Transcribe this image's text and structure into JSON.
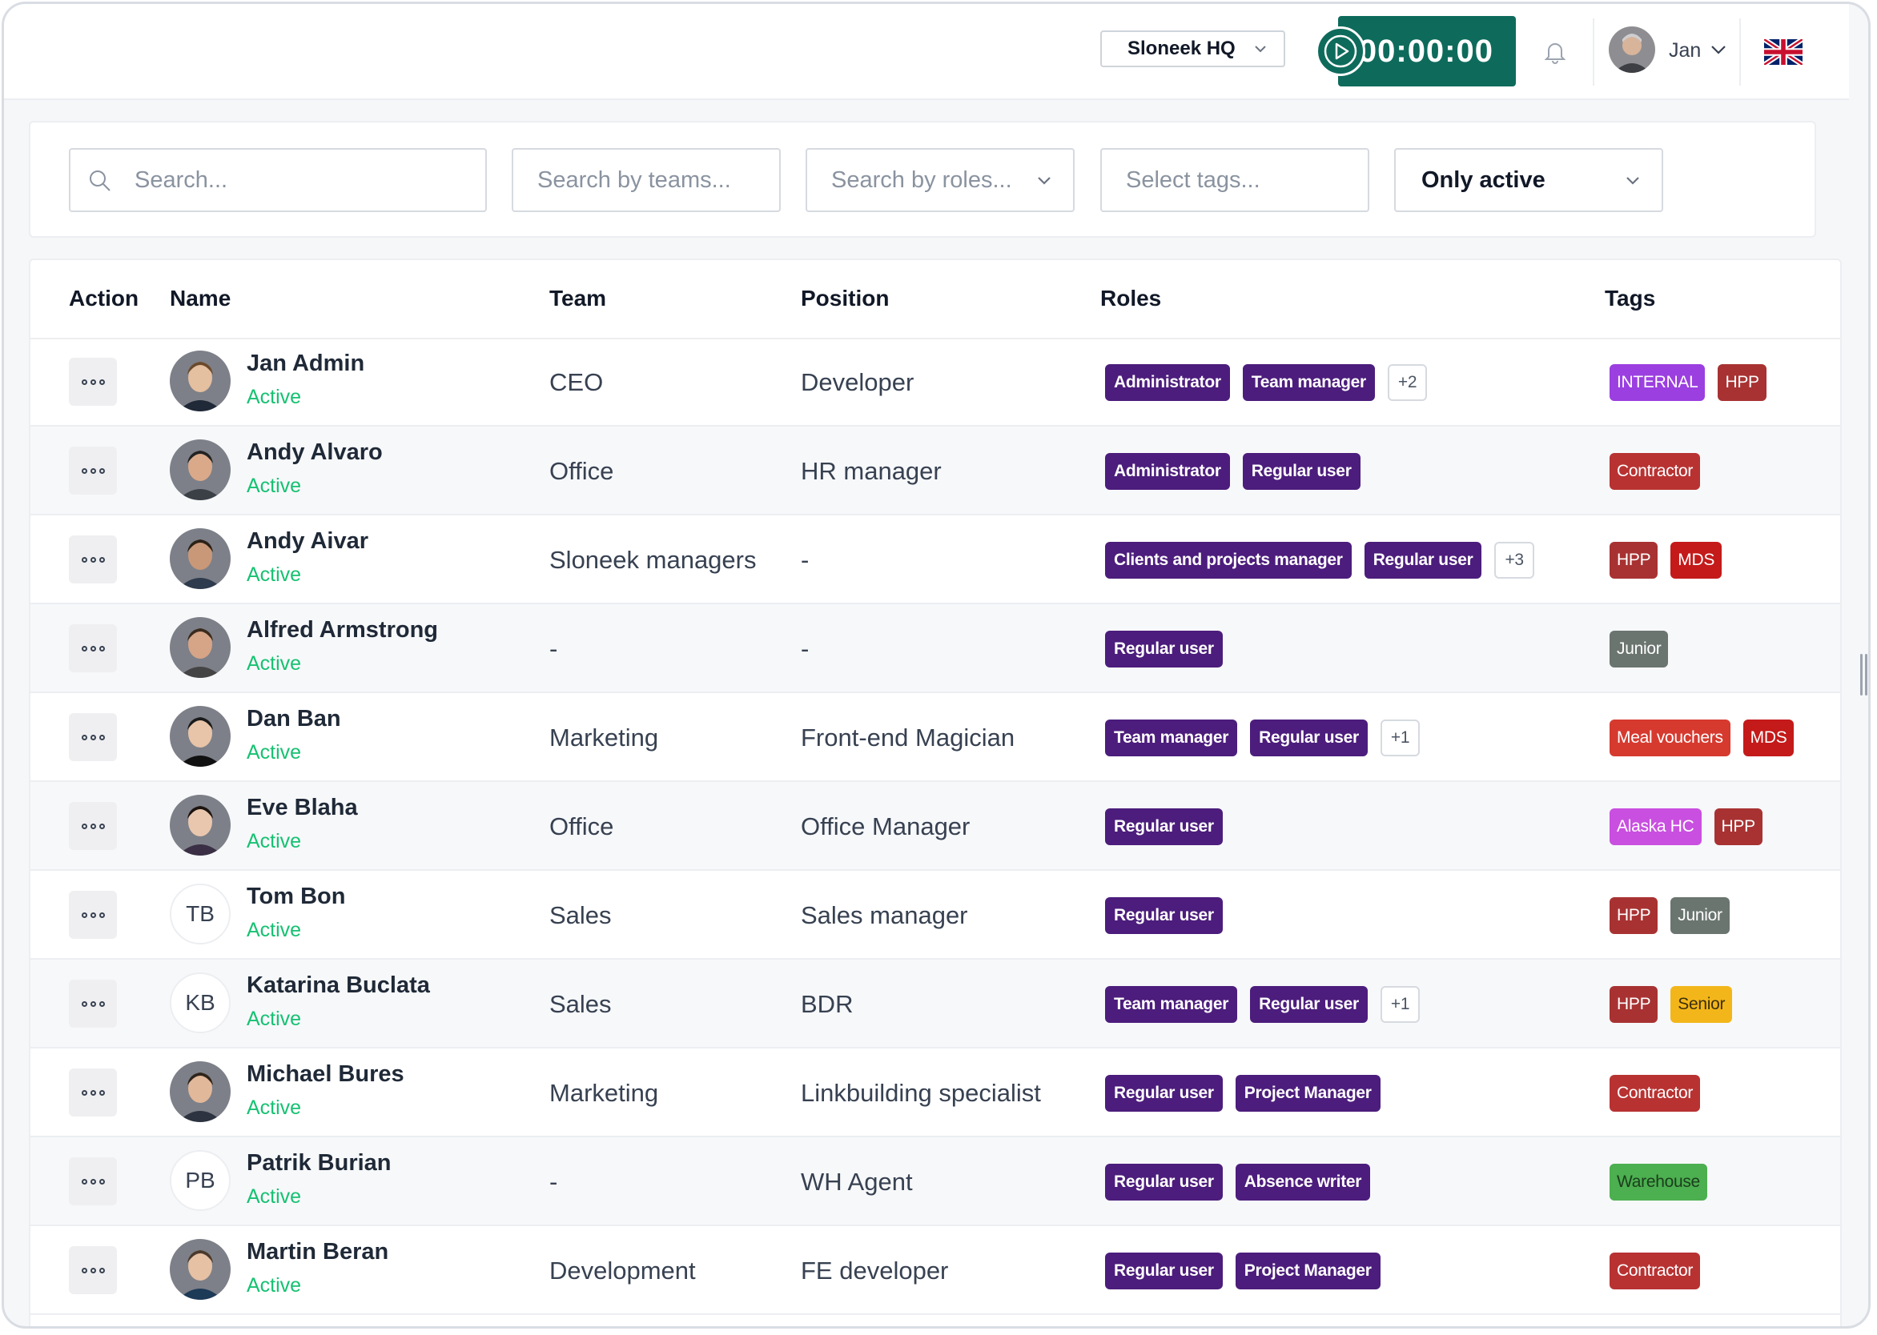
{
  "header": {
    "workspace": "Sloneek HQ",
    "timer": "00:00:00",
    "user_name": "Jan"
  },
  "filters": {
    "search_placeholder": "Search...",
    "teams_placeholder": "Search by teams...",
    "roles_placeholder": "Search by roles...",
    "tags_placeholder": "Select tags...",
    "status_selected": "Only active"
  },
  "table": {
    "headers": {
      "action": "Action",
      "name": "Name",
      "team": "Team",
      "position": "Position",
      "roles": "Roles",
      "tags": "Tags"
    },
    "rows": [
      {
        "name": "Jan Admin",
        "status": "Active",
        "team": "CEO",
        "position": "Developer",
        "avatar": "photo",
        "roles": [
          "Administrator",
          "Team manager"
        ],
        "more": "+2",
        "tags": [
          {
            "label": "INTERNAL",
            "color": "#9b3fe0"
          },
          {
            "label": "HPP",
            "color": "#a83232"
          }
        ]
      },
      {
        "name": "Andy Alvaro",
        "status": "Active",
        "team": "Office",
        "position": "HR manager",
        "avatar": "photo",
        "roles": [
          "Administrator",
          "Regular user"
        ],
        "more": "",
        "tags": [
          {
            "label": "Contractor",
            "color": "#b83232"
          }
        ]
      },
      {
        "name": "Andy Aivar",
        "status": "Active",
        "team": "Sloneek managers",
        "position": "-",
        "avatar": "photo",
        "roles": [
          "Clients and projects manager",
          "Regular user"
        ],
        "more": "+3",
        "tags": [
          {
            "label": "HPP",
            "color": "#a83232"
          },
          {
            "label": "MDS",
            "color": "#c41a1a"
          }
        ]
      },
      {
        "name": "Alfred Armstrong",
        "status": "Active",
        "team": "-",
        "position": "-",
        "avatar": "photo",
        "roles": [
          "Regular user"
        ],
        "more": "",
        "tags": [
          {
            "label": "Junior",
            "color": "#6b7570"
          }
        ]
      },
      {
        "name": "Dan Ban",
        "status": "Active",
        "team": "Marketing",
        "position": "Front-end Magician",
        "avatar": "photo",
        "roles": [
          "Team manager",
          "Regular user"
        ],
        "more": "+1",
        "tags": [
          {
            "label": "Meal vouchers",
            "color": "#d63a2f"
          },
          {
            "label": "MDS",
            "color": "#c41a1a"
          }
        ]
      },
      {
        "name": "Eve Blaha",
        "status": "Active",
        "team": "Office",
        "position": "Office Manager",
        "avatar": "photo",
        "roles": [
          "Regular user"
        ],
        "more": "",
        "tags": [
          {
            "label": "Alaska HC",
            "color": "#c94fe0"
          },
          {
            "label": "HPP",
            "color": "#a83232"
          }
        ]
      },
      {
        "name": "Tom Bon",
        "status": "Active",
        "team": "Sales",
        "position": "Sales manager",
        "avatar": "TB",
        "roles": [
          "Regular user"
        ],
        "more": "",
        "tags": [
          {
            "label": "HPP",
            "color": "#a83232"
          },
          {
            "label": "Junior",
            "color": "#6b7570"
          }
        ]
      },
      {
        "name": "Katarina Buclata",
        "status": "Active",
        "team": "Sales",
        "position": "BDR",
        "avatar": "KB",
        "roles": [
          "Team manager",
          "Regular user"
        ],
        "more": "+1",
        "tags": [
          {
            "label": "HPP",
            "color": "#a83232"
          },
          {
            "label": "Senior",
            "color": "#f3b61a",
            "text": "#3b2f0b"
          }
        ]
      },
      {
        "name": "Michael Bures",
        "status": "Active",
        "team": "Marketing",
        "position": "Linkbuilding specialist",
        "avatar": "photo",
        "roles": [
          "Regular user",
          "Project Manager"
        ],
        "more": "",
        "tags": [
          {
            "label": "Contractor",
            "color": "#b83232"
          }
        ]
      },
      {
        "name": "Patrik Burian",
        "status": "Active",
        "team": "-",
        "position": "WH Agent",
        "avatar": "PB",
        "roles": [
          "Regular user",
          "Absence writer"
        ],
        "more": "",
        "tags": [
          {
            "label": "Warehouse",
            "color": "#4caf50",
            "text": "#1b3d1c"
          }
        ]
      },
      {
        "name": "Martin Beran",
        "status": "Active",
        "team": "Development",
        "position": "FE developer",
        "avatar": "photo",
        "roles": [
          "Regular user",
          "Project Manager"
        ],
        "more": "",
        "tags": [
          {
            "label": "Contractor",
            "color": "#b83232"
          }
        ]
      }
    ]
  }
}
